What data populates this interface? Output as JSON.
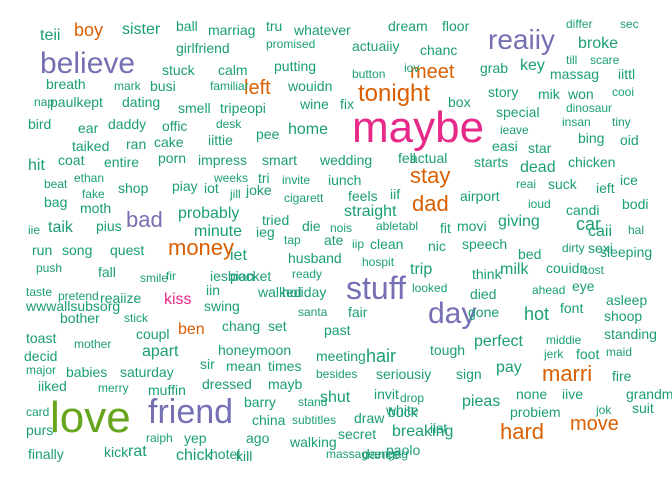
{
  "palette": {
    "teal": "#1b9e77",
    "orange": "#d95f02",
    "purple": "#7570b3",
    "pink": "#e7298a",
    "green": "#66a61e"
  },
  "words": [
    {
      "text": "maybe",
      "color": "pink"
    },
    {
      "text": "love",
      "color": "green"
    },
    {
      "text": "friend",
      "color": "purple"
    },
    {
      "text": "believe",
      "color": "purple"
    },
    {
      "text": "stuff",
      "color": "purple"
    },
    {
      "text": "day",
      "color": "purple"
    },
    {
      "text": "reaiiy",
      "color": "purple"
    },
    {
      "text": "tonight",
      "color": "orange"
    },
    {
      "text": "money",
      "color": "orange"
    },
    {
      "text": "bad",
      "color": "purple"
    },
    {
      "text": "hard",
      "color": "orange"
    },
    {
      "text": "marri",
      "color": "orange"
    },
    {
      "text": "move",
      "color": "orange"
    },
    {
      "text": "meet",
      "color": "orange"
    },
    {
      "text": "dad",
      "color": "orange"
    },
    {
      "text": "stay",
      "color": "orange"
    },
    {
      "text": "left",
      "color": "orange"
    },
    {
      "text": "boy",
      "color": "orange"
    },
    {
      "text": "ben",
      "color": "orange"
    },
    {
      "text": "kiss",
      "color": "pink"
    },
    {
      "text": "hair",
      "color": "teal"
    },
    {
      "text": "apart",
      "color": "teal"
    },
    {
      "text": "home",
      "color": "teal"
    },
    {
      "text": "hot",
      "color": "teal"
    },
    {
      "text": "car",
      "color": "teal"
    },
    {
      "text": "perfect",
      "color": "teal"
    },
    {
      "text": "teii",
      "color": "teal"
    },
    {
      "text": "sister",
      "color": "teal"
    },
    {
      "text": "ball",
      "color": "teal"
    },
    {
      "text": "marriag",
      "color": "teal"
    },
    {
      "text": "tru",
      "color": "teal"
    },
    {
      "text": "whatever",
      "color": "teal"
    },
    {
      "text": "dream",
      "color": "teal"
    },
    {
      "text": "floor",
      "color": "teal"
    },
    {
      "text": "differ",
      "color": "teal"
    },
    {
      "text": "sec",
      "color": "teal"
    },
    {
      "text": "girlfriend",
      "color": "teal"
    },
    {
      "text": "promised",
      "color": "teal"
    },
    {
      "text": "actuaiiy",
      "color": "teal"
    },
    {
      "text": "chanc",
      "color": "teal"
    },
    {
      "text": "broke",
      "color": "teal"
    },
    {
      "text": "till",
      "color": "teal"
    },
    {
      "text": "scare",
      "color": "teal"
    },
    {
      "text": "stuck",
      "color": "teal"
    },
    {
      "text": "calm",
      "color": "teal"
    },
    {
      "text": "putting",
      "color": "teal"
    },
    {
      "text": "button",
      "color": "teal"
    },
    {
      "text": "iov",
      "color": "teal"
    },
    {
      "text": "grab",
      "color": "teal"
    },
    {
      "text": "key",
      "color": "teal"
    },
    {
      "text": "massag",
      "color": "teal"
    },
    {
      "text": "iittl",
      "color": "teal"
    },
    {
      "text": "breath",
      "color": "teal"
    },
    {
      "text": "mark",
      "color": "teal"
    },
    {
      "text": "busi",
      "color": "teal"
    },
    {
      "text": "familiar",
      "color": "teal"
    },
    {
      "text": "wouidn",
      "color": "teal"
    },
    {
      "text": "story",
      "color": "teal"
    },
    {
      "text": "mik",
      "color": "teal"
    },
    {
      "text": "won",
      "color": "teal"
    },
    {
      "text": "cooi",
      "color": "teal"
    },
    {
      "text": "nap",
      "color": "teal"
    },
    {
      "text": "paulkept",
      "color": "teal"
    },
    {
      "text": "dating",
      "color": "teal"
    },
    {
      "text": "smell",
      "color": "teal"
    },
    {
      "text": "tripeopi",
      "color": "teal"
    },
    {
      "text": "wine",
      "color": "teal"
    },
    {
      "text": "fix",
      "color": "teal"
    },
    {
      "text": "box",
      "color": "teal"
    },
    {
      "text": "special",
      "color": "teal"
    },
    {
      "text": "dinosaur",
      "color": "teal"
    },
    {
      "text": "bird",
      "color": "teal"
    },
    {
      "text": "ear",
      "color": "teal"
    },
    {
      "text": "daddy",
      "color": "teal"
    },
    {
      "text": "offic",
      "color": "teal"
    },
    {
      "text": "desk",
      "color": "teal"
    },
    {
      "text": "iittie",
      "color": "teal"
    },
    {
      "text": "pee",
      "color": "teal"
    },
    {
      "text": "ieave",
      "color": "teal"
    },
    {
      "text": "insan",
      "color": "teal"
    },
    {
      "text": "tiny",
      "color": "teal"
    },
    {
      "text": "bing",
      "color": "teal"
    },
    {
      "text": "oid",
      "color": "teal"
    },
    {
      "text": "taiked",
      "color": "teal"
    },
    {
      "text": "ran",
      "color": "teal"
    },
    {
      "text": "cake",
      "color": "teal"
    },
    {
      "text": "easi",
      "color": "teal"
    },
    {
      "text": "star",
      "color": "teal"
    },
    {
      "text": "hit",
      "color": "teal"
    },
    {
      "text": "coat",
      "color": "teal"
    },
    {
      "text": "entire",
      "color": "teal"
    },
    {
      "text": "porn",
      "color": "teal"
    },
    {
      "text": "impress",
      "color": "teal"
    },
    {
      "text": "smart",
      "color": "teal"
    },
    {
      "text": "wedding",
      "color": "teal"
    },
    {
      "text": "fell",
      "color": "teal"
    },
    {
      "text": "actual",
      "color": "teal"
    },
    {
      "text": "starts",
      "color": "teal"
    },
    {
      "text": "dead",
      "color": "teal"
    },
    {
      "text": "chicken",
      "color": "teal"
    },
    {
      "text": "weeks",
      "color": "teal"
    },
    {
      "text": "tri",
      "color": "teal"
    },
    {
      "text": "beat",
      "color": "teal"
    },
    {
      "text": "ethan",
      "color": "teal"
    },
    {
      "text": "invite",
      "color": "teal"
    },
    {
      "text": "iunch",
      "color": "teal"
    },
    {
      "text": "reai",
      "color": "teal"
    },
    {
      "text": "suck",
      "color": "teal"
    },
    {
      "text": "ieft",
      "color": "teal"
    },
    {
      "text": "ice",
      "color": "teal"
    },
    {
      "text": "fake",
      "color": "teal"
    },
    {
      "text": "shop",
      "color": "teal"
    },
    {
      "text": "piay",
      "color": "teal"
    },
    {
      "text": "iot",
      "color": "teal"
    },
    {
      "text": "jill",
      "color": "teal"
    },
    {
      "text": "joke",
      "color": "teal"
    },
    {
      "text": "cigarett",
      "color": "teal"
    },
    {
      "text": "feels",
      "color": "teal"
    },
    {
      "text": "iif",
      "color": "teal"
    },
    {
      "text": "airport",
      "color": "teal"
    },
    {
      "text": "bodi",
      "color": "teal"
    },
    {
      "text": "bag",
      "color": "teal"
    },
    {
      "text": "moth",
      "color": "teal"
    },
    {
      "text": "probably",
      "color": "teal"
    },
    {
      "text": "straight",
      "color": "teal"
    },
    {
      "text": "ioud",
      "color": "teal"
    },
    {
      "text": "candi",
      "color": "teal"
    },
    {
      "text": "taik",
      "color": "teal"
    },
    {
      "text": "pius",
      "color": "teal"
    },
    {
      "text": "tried",
      "color": "teal"
    },
    {
      "text": "die",
      "color": "teal"
    },
    {
      "text": "nois",
      "color": "teal"
    },
    {
      "text": "abletabl",
      "color": "teal"
    },
    {
      "text": "fit",
      "color": "teal"
    },
    {
      "text": "movi",
      "color": "teal"
    },
    {
      "text": "giving",
      "color": "teal"
    },
    {
      "text": "caii",
      "color": "teal"
    },
    {
      "text": "hal",
      "color": "teal"
    },
    {
      "text": "iie",
      "color": "teal"
    },
    {
      "text": "minute",
      "color": "teal"
    },
    {
      "text": "ieg",
      "color": "teal"
    },
    {
      "text": "tap",
      "color": "teal"
    },
    {
      "text": "ate",
      "color": "teal"
    },
    {
      "text": "iip",
      "color": "teal"
    },
    {
      "text": "clean",
      "color": "teal"
    },
    {
      "text": "nic",
      "color": "teal"
    },
    {
      "text": "speech",
      "color": "teal"
    },
    {
      "text": "sexi",
      "color": "teal"
    },
    {
      "text": "run",
      "color": "teal"
    },
    {
      "text": "song",
      "color": "teal"
    },
    {
      "text": "quest",
      "color": "teal"
    },
    {
      "text": "iet",
      "color": "teal"
    },
    {
      "text": "husband",
      "color": "teal"
    },
    {
      "text": "hospit",
      "color": "teal"
    },
    {
      "text": "bed",
      "color": "teal"
    },
    {
      "text": "dirty",
      "color": "teal"
    },
    {
      "text": "sleeping",
      "color": "teal"
    },
    {
      "text": "push",
      "color": "teal"
    },
    {
      "text": "fall",
      "color": "teal"
    },
    {
      "text": "smile",
      "color": "teal"
    },
    {
      "text": "fir",
      "color": "teal"
    },
    {
      "text": "iesbian",
      "color": "teal"
    },
    {
      "text": "pocket",
      "color": "teal"
    },
    {
      "text": "ready",
      "color": "teal"
    },
    {
      "text": "trip",
      "color": "teal"
    },
    {
      "text": "think",
      "color": "teal"
    },
    {
      "text": "milk",
      "color": "teal"
    },
    {
      "text": "couidn",
      "color": "teal"
    },
    {
      "text": "cost",
      "color": "teal"
    },
    {
      "text": "taste",
      "color": "teal"
    },
    {
      "text": "pretend",
      "color": "teal"
    },
    {
      "text": "reaiize",
      "color": "teal"
    },
    {
      "text": "iin",
      "color": "teal"
    },
    {
      "text": "walked",
      "color": "teal"
    },
    {
      "text": "hoiiday",
      "color": "teal"
    },
    {
      "text": "looked",
      "color": "teal"
    },
    {
      "text": "died",
      "color": "teal"
    },
    {
      "text": "ahead",
      "color": "teal"
    },
    {
      "text": "eye",
      "color": "teal"
    },
    {
      "text": "wwwallsubsorg",
      "color": "teal"
    },
    {
      "text": "swing",
      "color": "teal"
    },
    {
      "text": "santa",
      "color": "teal"
    },
    {
      "text": "fair",
      "color": "teal"
    },
    {
      "text": "gone",
      "color": "teal"
    },
    {
      "text": "font",
      "color": "teal"
    },
    {
      "text": "asleep",
      "color": "teal"
    },
    {
      "text": "bother",
      "color": "teal"
    },
    {
      "text": "stick",
      "color": "teal"
    },
    {
      "text": "chang",
      "color": "teal"
    },
    {
      "text": "set",
      "color": "teal"
    },
    {
      "text": "past",
      "color": "teal"
    },
    {
      "text": "shoop",
      "color": "teal"
    },
    {
      "text": "toast",
      "color": "teal"
    },
    {
      "text": "coupl",
      "color": "teal"
    },
    {
      "text": "standing",
      "color": "teal"
    },
    {
      "text": "mother",
      "color": "teal"
    },
    {
      "text": "middie",
      "color": "teal"
    },
    {
      "text": "decid",
      "color": "teal"
    },
    {
      "text": "honeymoon",
      "color": "teal"
    },
    {
      "text": "tough",
      "color": "teal"
    },
    {
      "text": "jerk",
      "color": "teal"
    },
    {
      "text": "foot",
      "color": "teal"
    },
    {
      "text": "maid",
      "color": "teal"
    },
    {
      "text": "major",
      "color": "teal"
    },
    {
      "text": "babies",
      "color": "teal"
    },
    {
      "text": "saturday",
      "color": "teal"
    },
    {
      "text": "sir",
      "color": "teal"
    },
    {
      "text": "mean",
      "color": "teal"
    },
    {
      "text": "times",
      "color": "teal"
    },
    {
      "text": "meeting",
      "color": "teal"
    },
    {
      "text": "pay",
      "color": "teal"
    },
    {
      "text": "iiked",
      "color": "teal"
    },
    {
      "text": "merry",
      "color": "teal"
    },
    {
      "text": "muffin",
      "color": "teal"
    },
    {
      "text": "dressed",
      "color": "teal"
    },
    {
      "text": "mayb",
      "color": "teal"
    },
    {
      "text": "besides",
      "color": "teal"
    },
    {
      "text": "seriousiy",
      "color": "teal"
    },
    {
      "text": "sign",
      "color": "teal"
    },
    {
      "text": "fire",
      "color": "teal"
    },
    {
      "text": "barry",
      "color": "teal"
    },
    {
      "text": "shut",
      "color": "teal"
    },
    {
      "text": "invit",
      "color": "teal"
    },
    {
      "text": "drop",
      "color": "teal"
    },
    {
      "text": "pieas",
      "color": "teal"
    },
    {
      "text": "none",
      "color": "teal"
    },
    {
      "text": "iive",
      "color": "teal"
    },
    {
      "text": "grandmalif",
      "color": "teal"
    },
    {
      "text": "card",
      "color": "teal"
    },
    {
      "text": "china",
      "color": "teal"
    },
    {
      "text": "stand",
      "color": "teal"
    },
    {
      "text": "draw",
      "color": "teal"
    },
    {
      "text": "white",
      "color": "teal"
    },
    {
      "text": "jok",
      "color": "teal"
    },
    {
      "text": "suit",
      "color": "teal"
    },
    {
      "text": "purs",
      "color": "teal"
    },
    {
      "text": "subtitles",
      "color": "teal"
    },
    {
      "text": "secret",
      "color": "teal"
    },
    {
      "text": "buck",
      "color": "teal"
    },
    {
      "text": "probiem",
      "color": "teal"
    },
    {
      "text": "raiph",
      "color": "teal"
    },
    {
      "text": "yep",
      "color": "teal"
    },
    {
      "text": "ago",
      "color": "teal"
    },
    {
      "text": "walking",
      "color": "teal"
    },
    {
      "text": "breaking",
      "color": "teal"
    },
    {
      "text": "iist",
      "color": "teal"
    },
    {
      "text": "finally",
      "color": "teal"
    },
    {
      "text": "kick",
      "color": "teal"
    },
    {
      "text": "rat",
      "color": "teal"
    },
    {
      "text": "chick",
      "color": "teal"
    },
    {
      "text": "hotel",
      "color": "teal"
    },
    {
      "text": "kill",
      "color": "teal"
    },
    {
      "text": "massageengag",
      "color": "teal"
    },
    {
      "text": "dance",
      "color": "teal"
    },
    {
      "text": "paolo",
      "color": "teal"
    }
  ]
}
